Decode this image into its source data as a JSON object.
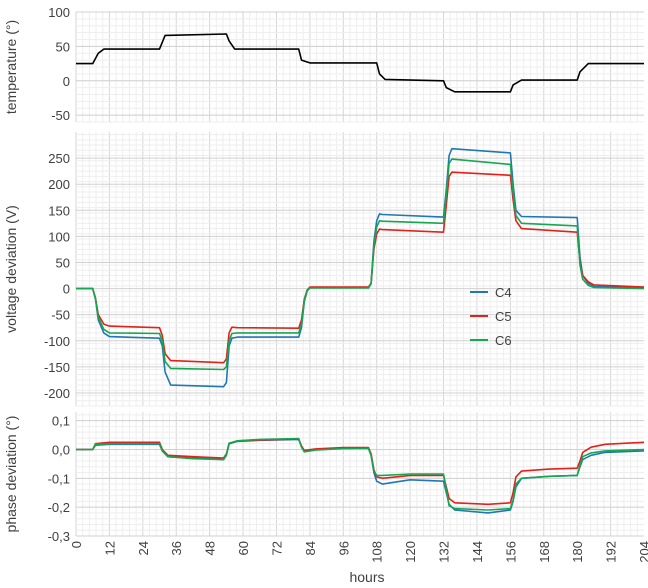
{
  "chart_data": {
    "type": "line",
    "xlabel": "hours",
    "x_ticks": [
      "0",
      "12",
      "24",
      "36",
      "48",
      "60",
      "72",
      "84",
      "96",
      "108",
      "120",
      "132",
      "144",
      "156",
      "168",
      "180",
      "192",
      "204"
    ],
    "xlim": [
      0,
      204
    ],
    "grid": true,
    "legend_position": "center-right",
    "panels": [
      {
        "ylabel": "temperature (°)",
        "ylim": [
          -60,
          100
        ],
        "y_ticks": [
          "100",
          "50",
          "0",
          "-50"
        ],
        "series": [
          {
            "color": "#000000",
            "x": [
              0,
              6,
              8,
              10,
              30,
              32,
              54,
              55,
              57,
              80,
              81,
              84,
              108,
              109,
              111,
              132,
              133,
              136,
              156,
              157,
              160,
              180,
              181,
              184,
              204
            ],
            "y": [
              25,
              25,
              40,
              46,
              46,
              66,
              68,
              58,
              46,
              46,
              30,
              26,
              26,
              10,
              2,
              0,
              -10,
              -16,
              -16,
              -6,
              1,
              1,
              13,
              25,
              25
            ]
          }
        ]
      },
      {
        "ylabel": "voltage deviation (V)",
        "ylim": [
          -225,
          300
        ],
        "y_ticks": [
          "250",
          "200",
          "150",
          "100",
          "50",
          "0",
          "-50",
          "-100",
          "-150",
          "-200"
        ],
        "series": [
          {
            "name": "C4",
            "color": "#1f77b4",
            "x": [
              0,
              6,
              7,
              8,
              10,
              12,
              30,
              31,
              32,
              34,
              53,
              54,
              55,
              56,
              58,
              80,
              81,
              82,
              83,
              84,
              105,
              106,
              107,
              108,
              109,
              110,
              132,
              133,
              134,
              135,
              156,
              157,
              158,
              160,
              180,
              181,
              182,
              184,
              186,
              204
            ],
            "y": [
              0,
              0,
              -20,
              -60,
              -85,
              -92,
              -95,
              -110,
              -160,
              -185,
              -188,
              -180,
              -110,
              -95,
              -93,
              -93,
              -75,
              -25,
              -5,
              2,
              2,
              10,
              90,
              130,
              143,
              142,
              137,
              190,
              255,
              268,
              260,
              200,
              150,
              138,
              136,
              60,
              25,
              10,
              4,
              2
            ]
          },
          {
            "name": "C5",
            "color": "#e32119",
            "x": [
              0,
              6,
              7,
              8,
              10,
              12,
              30,
              31,
              32,
              34,
              53,
              54,
              55,
              56,
              58,
              80,
              81,
              82,
              83,
              84,
              105,
              106,
              107,
              108,
              109,
              110,
              132,
              133,
              134,
              135,
              156,
              157,
              158,
              160,
              180,
              181,
              182,
              184,
              186,
              204
            ],
            "y": [
              0,
              0,
              -18,
              -50,
              -68,
              -72,
              -75,
              -90,
              -125,
              -138,
              -142,
              -135,
              -85,
              -74,
              -75,
              -76,
              -60,
              -20,
              -3,
              3,
              3,
              10,
              75,
              105,
              114,
              113,
              108,
              160,
              215,
              223,
              217,
              170,
              130,
              115,
              108,
              50,
              25,
              13,
              7,
              3
            ]
          },
          {
            "name": "C6",
            "color": "#17a651",
            "x": [
              0,
              6,
              7,
              8,
              10,
              12,
              30,
              31,
              32,
              34,
              53,
              54,
              55,
              56,
              58,
              80,
              81,
              82,
              83,
              84,
              105,
              106,
              107,
              108,
              109,
              110,
              132,
              133,
              134,
              135,
              156,
              157,
              158,
              160,
              180,
              181,
              182,
              184,
              186,
              204
            ],
            "y": [
              0,
              0,
              -20,
              -55,
              -78,
              -85,
              -86,
              -100,
              -140,
              -153,
              -155,
              -150,
              -100,
              -86,
              -85,
              -85,
              -68,
              -22,
              -4,
              1,
              1,
              9,
              82,
              118,
              130,
              129,
              125,
              180,
              240,
              248,
              238,
              185,
              140,
              125,
              120,
              45,
              18,
              6,
              2,
              0
            ]
          }
        ],
        "legend": [
          "C4",
          "C5",
          "C6"
        ]
      },
      {
        "ylabel": "phase deviation (°)",
        "ylim": [
          -0.3,
          0.13
        ],
        "y_ticks": [
          "0,1",
          "0,0",
          "-0,1",
          "-0,2",
          "-0,3"
        ],
        "series": [
          {
            "name": "C4",
            "color": "#1f77b4",
            "x": [
              0,
              6,
              7,
              12,
              30,
              31,
              33,
              42,
              53,
              54,
              55,
              58,
              66,
              80,
              81,
              82,
              86,
              96,
              105,
              106,
              107,
              108,
              110,
              120,
              132,
              133,
              134,
              136,
              148,
              156,
              157,
              158,
              160,
              170,
              180,
              181,
              182,
              185,
              190,
              204
            ],
            "y": [
              0,
              0,
              0.015,
              0.018,
              0.018,
              -0.005,
              -0.025,
              -0.03,
              -0.035,
              -0.02,
              0.02,
              0.028,
              0.032,
              0.035,
              0.01,
              -0.005,
              0,
              0.005,
              0.005,
              -0.02,
              -0.08,
              -0.11,
              -0.12,
              -0.105,
              -0.11,
              -0.15,
              -0.19,
              -0.21,
              -0.22,
              -0.21,
              -0.18,
              -0.13,
              -0.1,
              -0.093,
              -0.09,
              -0.06,
              -0.035,
              -0.02,
              -0.01,
              -0.005
            ]
          },
          {
            "name": "C5",
            "color": "#e32119",
            "x": [
              0,
              6,
              7,
              12,
              30,
              31,
              33,
              42,
              53,
              54,
              55,
              58,
              66,
              80,
              81,
              82,
              86,
              96,
              105,
              106,
              107,
              108,
              110,
              120,
              132,
              133,
              134,
              136,
              148,
              156,
              157,
              158,
              160,
              170,
              180,
              181,
              182,
              185,
              190,
              204
            ],
            "y": [
              0,
              0,
              0.02,
              0.025,
              0.025,
              0,
              -0.02,
              -0.025,
              -0.03,
              -0.015,
              0.02,
              0.03,
              0.033,
              0.036,
              0.012,
              -0.003,
              0.002,
              0.007,
              0.007,
              -0.015,
              -0.07,
              -0.095,
              -0.1,
              -0.09,
              -0.09,
              -0.13,
              -0.17,
              -0.185,
              -0.19,
              -0.185,
              -0.15,
              -0.095,
              -0.075,
              -0.068,
              -0.065,
              -0.04,
              -0.01,
              0.008,
              0.018,
              0.025
            ]
          },
          {
            "name": "C6",
            "color": "#17a651",
            "x": [
              0,
              6,
              7,
              12,
              30,
              31,
              33,
              42,
              53,
              54,
              55,
              58,
              66,
              80,
              81,
              82,
              86,
              96,
              105,
              106,
              107,
              108,
              110,
              120,
              132,
              133,
              134,
              136,
              148,
              156,
              157,
              158,
              160,
              170,
              180,
              181,
              182,
              185,
              190,
              204
            ],
            "y": [
              0,
              0,
              0.018,
              0.02,
              0.02,
              -0.005,
              -0.025,
              -0.032,
              -0.035,
              -0.018,
              0.022,
              0.03,
              0.035,
              0.038,
              0.008,
              -0.008,
              -0.002,
              0.003,
              0.004,
              -0.02,
              -0.075,
              -0.09,
              -0.09,
              -0.085,
              -0.085,
              -0.14,
              -0.195,
              -0.205,
              -0.21,
              -0.205,
              -0.175,
              -0.12,
              -0.1,
              -0.093,
              -0.09,
              -0.055,
              -0.025,
              -0.012,
              -0.005,
              0
            ]
          }
        ]
      }
    ]
  }
}
